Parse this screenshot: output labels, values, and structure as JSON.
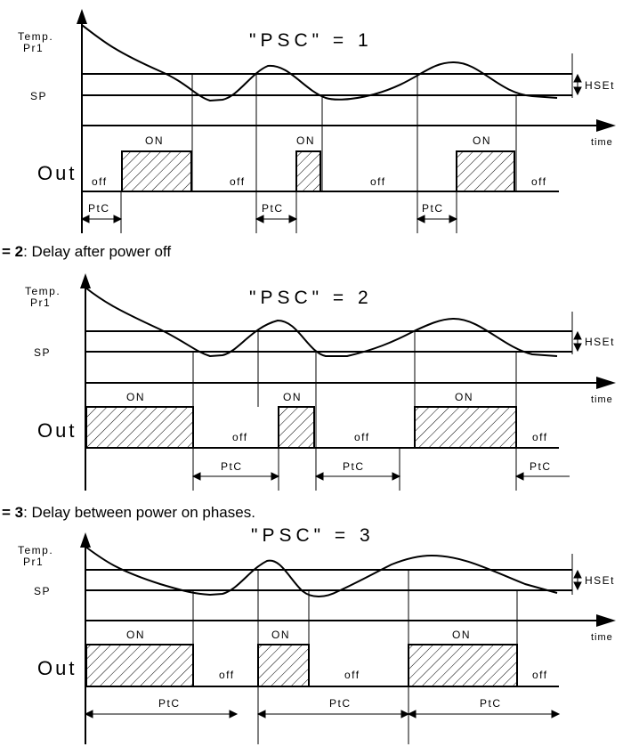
{
  "labels": {
    "temp_line1": "Temp.",
    "temp_line2": "Pr1",
    "sp": "SP",
    "hset": "HSEt",
    "time": "time",
    "out": "Out",
    "on": "ON",
    "off": "off",
    "ptc": "PtC"
  },
  "diagrams": [
    {
      "title": "\"PSC\" = 1"
    },
    {
      "title": "\"PSC\" = 2",
      "caption_prefix": "= 2",
      "caption_text": ": Delay after power off"
    },
    {
      "title": "\"PSC\" = 3",
      "caption_prefix": "= 3",
      "caption_text": ": Delay between power on phases."
    }
  ]
}
